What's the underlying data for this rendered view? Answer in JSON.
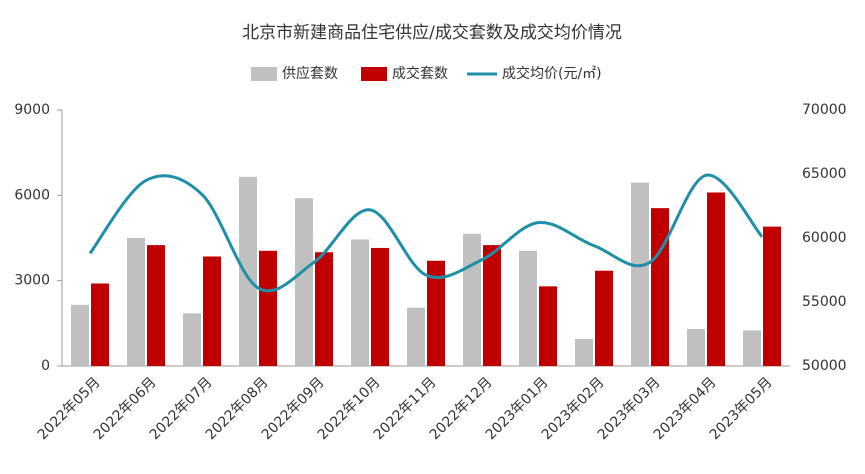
{
  "chart_data": {
    "type": "bar_line",
    "title": "北京市新建商品住宅供应/成交套数及成交均价情况",
    "categories": [
      "2022年05月",
      "2022年06月",
      "2022年07月",
      "2022年08月",
      "2022年09月",
      "2022年10月",
      "2022年11月",
      "2022年12月",
      "2023年01月",
      "2023年02月",
      "2023年03月",
      "2023年04月",
      "2023年05月"
    ],
    "series": [
      {
        "name": "供应套数",
        "color": "#c0c0c0",
        "type": "bar",
        "values": [
          2150,
          4500,
          1850,
          6650,
          5900,
          4450,
          2050,
          4650,
          4050,
          950,
          6450,
          1300,
          1250
        ]
      },
      {
        "name": "成交套数",
        "color": "#c00000",
        "type": "bar",
        "values": [
          2900,
          4250,
          3850,
          4050,
          4000,
          4150,
          3700,
          4250,
          2800,
          3350,
          5550,
          6100,
          4900
        ]
      },
      {
        "name": "成交均价(元/㎡)",
        "color": "#1f8fa8",
        "type": "line",
        "axis": "y2",
        "values": [
          58800,
          64500,
          63400,
          56100,
          58100,
          62200,
          57100,
          58300,
          61200,
          59400,
          58100,
          64900,
          60100
        ]
      }
    ],
    "ylim": [
      0,
      9000
    ],
    "yticks": [
      0,
      3000,
      6000,
      9000
    ],
    "y2lim": [
      50000,
      70000
    ],
    "y2ticks": [
      50000,
      55000,
      60000,
      65000,
      70000
    ],
    "legend": "top"
  }
}
